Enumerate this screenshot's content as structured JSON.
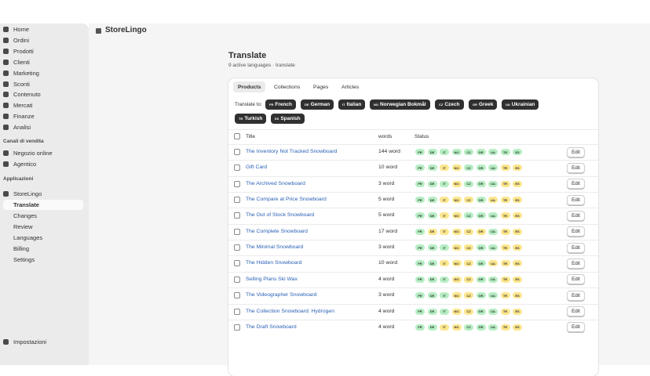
{
  "app_header": {
    "title": "StoreLingo"
  },
  "nav": {
    "items": [
      "Home",
      "Ordini",
      "Prodotti",
      "Clienti",
      "Marketing",
      "Sconti",
      "Contenuto",
      "Mercati",
      "Finanze",
      "Analisi"
    ],
    "channels_heading": "Canali di vendita",
    "channels": [
      "Negozio online",
      "Agentico"
    ],
    "apps_heading": "Applicazioni",
    "app": "StoreLingo",
    "app_items": [
      "Translate",
      "Changes",
      "Review",
      "Languages",
      "Billing",
      "Settings"
    ],
    "settings": "Impostazioni"
  },
  "page": {
    "title": "Translate",
    "subtitle": "9 active languages · translate",
    "tabs": [
      "Products",
      "Collections",
      "Pages",
      "Articles"
    ],
    "translate_to": "Translate to:",
    "languages": [
      {
        "code": "FR",
        "name": "French"
      },
      {
        "code": "DE",
        "name": "German"
      },
      {
        "code": "IT",
        "name": "Italian"
      },
      {
        "code": "NO",
        "name": "Norwegian Bokmål"
      },
      {
        "code": "CZ",
        "name": "Czech"
      },
      {
        "code": "GR",
        "name": "Greek"
      },
      {
        "code": "UA",
        "name": "Ukrainian"
      },
      {
        "code": "TR",
        "name": "Turkish"
      },
      {
        "code": "ES",
        "name": "Spanish"
      }
    ],
    "table": {
      "columns": [
        "Title",
        "words",
        "Status"
      ],
      "edit": "Edit",
      "rows": [
        {
          "title": "The Inventory Not Tracked Snowboard",
          "words": "144 word",
          "status": [
            "#b6eec3",
            "#b6eec3",
            "#b6eec3",
            "#b6eec3",
            "#b6eec3",
            "#b6eec3",
            "#b6eec3",
            "#b6eec3",
            "#b6eec3"
          ]
        },
        {
          "title": "Gift Card",
          "words": "10 word",
          "status": [
            "#b6eec3",
            "#b6eec3",
            "#fbe68d",
            "#fbe68d",
            "#b6eec3",
            "#b6eec3",
            "#b6eec3",
            "#fbe68d",
            "#fbe68d"
          ]
        },
        {
          "title": "The Archived Snowboard",
          "words": "3 word",
          "status": [
            "#b6eec3",
            "#b6eec3",
            "#b6eec3",
            "#fbe68d",
            "#b6eec3",
            "#b6eec3",
            "#b6eec3",
            "#fbe68d",
            "#fbe68d"
          ]
        },
        {
          "title": "The Compare at Price Snowboard",
          "words": "5 word",
          "status": [
            "#b6eec3",
            "#b6eec3",
            "#fbe68d",
            "#fbe68d",
            "#fbe68d",
            "#b6eec3",
            "#fbe68d",
            "#fbe68d",
            "#fbe68d"
          ]
        },
        {
          "title": "The Out of Stock Snowboard",
          "words": "5 word",
          "status": [
            "#b6eec3",
            "#b6eec3",
            "#fbe68d",
            "#fbe68d",
            "#b6eec3",
            "#b6eec3",
            "#b6eec3",
            "#fbe68d",
            "#fbe68d"
          ]
        },
        {
          "title": "The Complete Snowboard",
          "words": "17 word",
          "status": [
            "#b6eec3",
            "#fbe68d",
            "#fbe68d",
            "#fbe68d",
            "#fbe68d",
            "#fbe68d",
            "#b6eec3",
            "#fbe68d",
            "#fbe68d"
          ]
        },
        {
          "title": "The Minimal Snowboard",
          "words": "3 word",
          "status": [
            "#b6eec3",
            "#b6eec3",
            "#b6eec3",
            "#fbe68d",
            "#fbe68d",
            "#b6eec3",
            "#b6eec3",
            "#fbe68d",
            "#fbe68d"
          ]
        },
        {
          "title": "The Hidden Snowboard",
          "words": "10 word",
          "status": [
            "#b6eec3",
            "#b6eec3",
            "#fbe68d",
            "#fbe68d",
            "#fbe68d",
            "#b6eec3",
            "#fbe68d",
            "#fbe68d",
            "#fbe68d"
          ]
        },
        {
          "title": "Selling Plans Ski Wax",
          "words": "4 word",
          "status": [
            "#b6eec3",
            "#b6eec3",
            "#b6eec3",
            "#fbe68d",
            "#fbe68d",
            "#b6eec3",
            "#b6eec3",
            "#fbe68d",
            "#fbe68d"
          ]
        },
        {
          "title": "The Videographer Snowboard",
          "words": "3 word",
          "status": [
            "#b6eec3",
            "#b6eec3",
            "#b6eec3",
            "#fbe68d",
            "#fbe68d",
            "#b6eec3",
            "#b6eec3",
            "#fbe68d",
            "#fbe68d"
          ]
        },
        {
          "title": "The Collection Snowboard: Hydrogen",
          "words": "4 word",
          "status": [
            "#b6eec3",
            "#b6eec3",
            "#b6eec3",
            "#fbe68d",
            "#fbe68d",
            "#b6eec3",
            "#b6eec3",
            "#fbe68d",
            "#fbe68d"
          ]
        },
        {
          "title": "The Draft Snowboard",
          "words": "4 word",
          "status": [
            "#b6eec3",
            "#b6eec3",
            "#fbe68d",
            "#fbe68d",
            "#b6eec3",
            "#b6eec3",
            "#b6eec3",
            "#fbe68d",
            "#fbe68d"
          ]
        }
      ]
    }
  }
}
